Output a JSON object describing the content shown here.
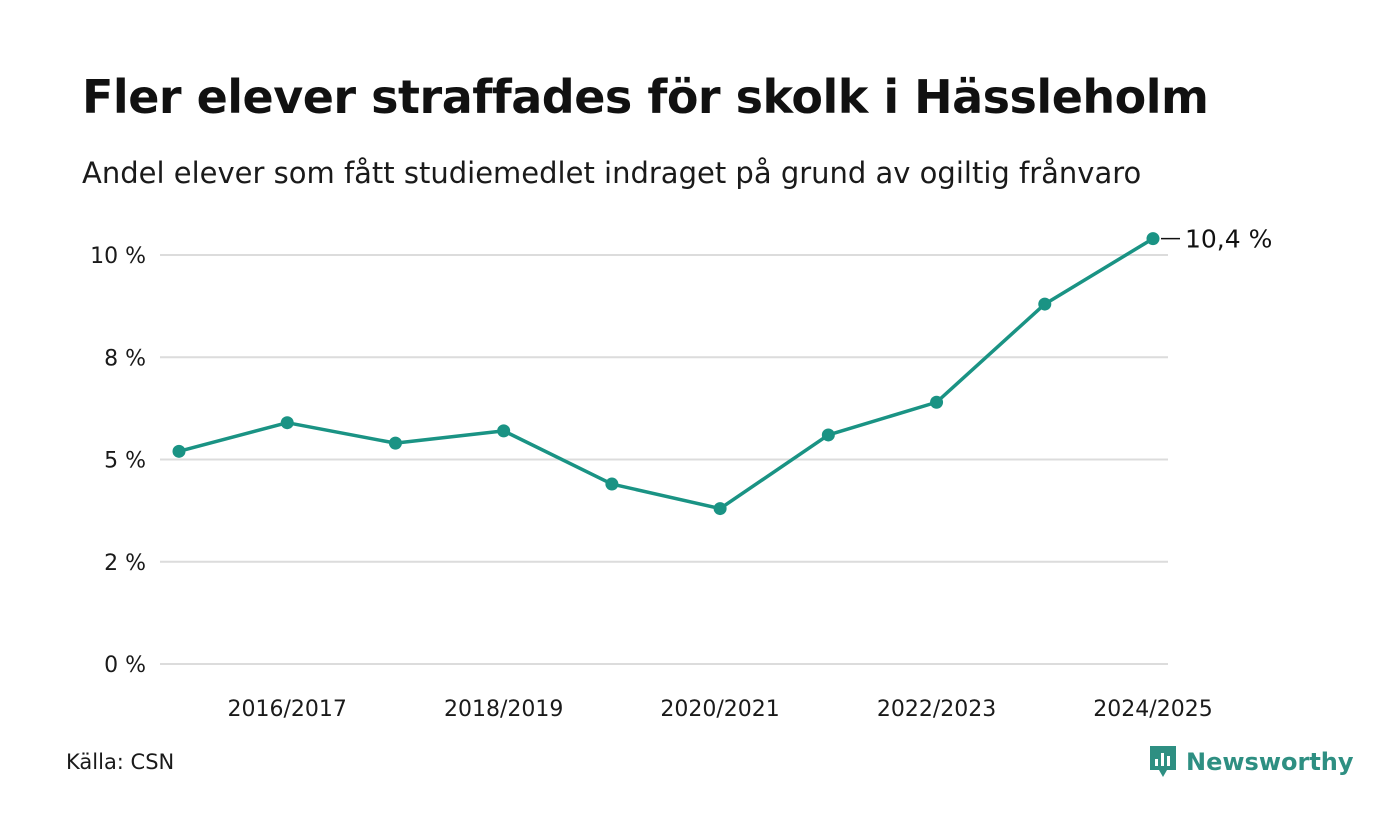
{
  "title": "Fler elever straffades för skolk i Hässleholm",
  "subtitle": "Andel elever som fått studiemedlet indraget på grund av ogiltig frånvaro",
  "source": "Källa: CSN",
  "brand": {
    "name": "Newsworthy",
    "icon": "newsworthy-logo-icon",
    "color": "#2e8f82"
  },
  "chart_data": {
    "type": "line",
    "x": [
      "2015/2016",
      "2016/2017",
      "2017/2018",
      "2018/2019",
      "2019/2020",
      "2020/2021",
      "2021/2022",
      "2022/2023",
      "2023/2024",
      "2024/2025"
    ],
    "x_tick_labels": [
      "2016/2017",
      "2018/2019",
      "2020/2021",
      "2022/2023",
      "2024/2025"
    ],
    "series": [
      {
        "values": [
          5.2,
          5.9,
          5.4,
          5.7,
          4.4,
          3.8,
          5.6,
          6.4,
          8.8,
          10.4
        ],
        "color": "#1a9384"
      }
    ],
    "y_ticks": [
      {
        "value": 0,
        "label": "0 %"
      },
      {
        "value": 2.5,
        "label": "2 %"
      },
      {
        "value": 5,
        "label": "5 %"
      },
      {
        "value": 7.5,
        "label": "8 %"
      },
      {
        "value": 10,
        "label": "10 %"
      }
    ],
    "ylim": [
      0,
      10.4
    ],
    "grid": true,
    "end_label": "10,4 %"
  }
}
